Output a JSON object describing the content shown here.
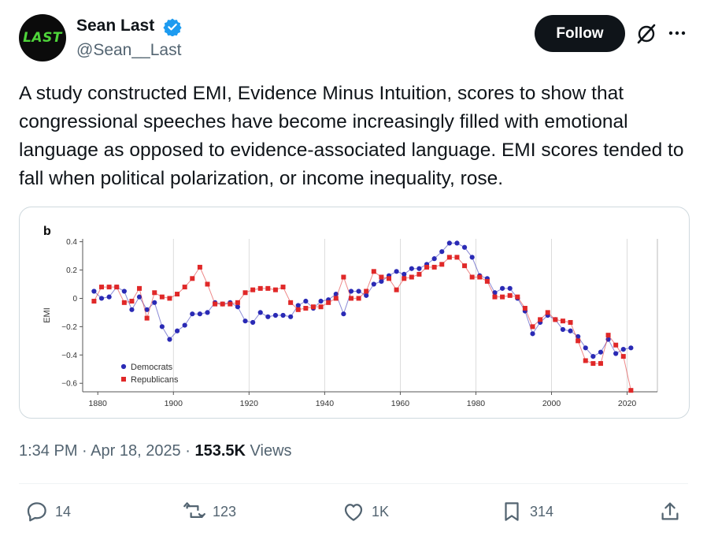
{
  "author": {
    "name": "Sean Last",
    "handle": "@Sean__Last",
    "avatar_text": "LAST",
    "verified_color": "#1d9bf0"
  },
  "follow_label": "Follow",
  "tweet_text": "A study constructed EMI, Evidence Minus Intuition, scores to show that congressional speeches have become increasingly filled with emotional language as opposed to evidence-associated language. EMI scores tended to fall when political polarization, or income inequality, rose.",
  "timestamp": "1:34 PM · Apr 18, 2025 · ",
  "views_count": "153.5K",
  "views_label": " Views",
  "actions": {
    "reply": "14",
    "retweet": "123",
    "like": "1K",
    "bookmark": "314"
  },
  "icons": [
    "verified-badge-icon",
    "grok-icon",
    "more-icon",
    "reply-icon",
    "retweet-icon",
    "like-icon",
    "bookmark-icon",
    "share-icon"
  ],
  "chart_data": {
    "type": "line",
    "panel_label": "b",
    "ylabel": "EMI",
    "xlim": [
      1876,
      2028
    ],
    "ylim": [
      -0.66,
      0.42
    ],
    "xticks": [
      1880,
      1900,
      1920,
      1940,
      1960,
      1980,
      2000,
      2020
    ],
    "yticks": [
      0.4,
      0.2,
      0,
      -0.2,
      -0.4,
      -0.6
    ],
    "ytick_labels": [
      "0.4",
      "0.2",
      "0",
      "−0.2",
      "−0.4",
      "−0.6"
    ],
    "vlines": [
      1900,
      1920,
      1940,
      1960,
      1980,
      2000,
      2020
    ],
    "legend_position": "bottom-left",
    "series": [
      {
        "name": "Democrats",
        "color": "#2a2ab5",
        "marker": "circle",
        "x": [
          1879,
          1881,
          1883,
          1885,
          1887,
          1889,
          1891,
          1893,
          1895,
          1897,
          1899,
          1901,
          1903,
          1905,
          1907,
          1909,
          1911,
          1913,
          1915,
          1917,
          1919,
          1921,
          1923,
          1925,
          1927,
          1929,
          1931,
          1933,
          1935,
          1937,
          1939,
          1941,
          1943,
          1945,
          1947,
          1949,
          1951,
          1953,
          1955,
          1957,
          1959,
          1961,
          1963,
          1965,
          1967,
          1969,
          1971,
          1973,
          1975,
          1977,
          1979,
          1981,
          1983,
          1985,
          1987,
          1989,
          1991,
          1993,
          1995,
          1997,
          1999,
          2001,
          2003,
          2005,
          2007,
          2009,
          2011,
          2013,
          2015,
          2017,
          2019,
          2021
        ],
        "y": [
          0.05,
          0.0,
          0.01,
          0.08,
          0.05,
          -0.08,
          0.01,
          -0.08,
          -0.03,
          -0.2,
          -0.29,
          -0.23,
          -0.19,
          -0.11,
          -0.11,
          -0.1,
          -0.03,
          -0.04,
          -0.03,
          -0.06,
          -0.16,
          -0.17,
          -0.1,
          -0.13,
          -0.12,
          -0.12,
          -0.13,
          -0.05,
          -0.02,
          -0.07,
          -0.02,
          -0.01,
          0.03,
          -0.11,
          0.05,
          0.05,
          0.02,
          0.1,
          0.12,
          0.16,
          0.19,
          0.17,
          0.21,
          0.21,
          0.24,
          0.28,
          0.33,
          0.39,
          0.39,
          0.36,
          0.29,
          0.16,
          0.14,
          0.04,
          0.07,
          0.07,
          0.0,
          -0.09,
          -0.25,
          -0.17,
          -0.12,
          -0.15,
          -0.22,
          -0.23,
          -0.27,
          -0.35,
          -0.41,
          -0.38,
          -0.29,
          -0.39,
          -0.36,
          -0.35
        ]
      },
      {
        "name": "Republicans",
        "color": "#e02828",
        "marker": "square",
        "x": [
          1879,
          1881,
          1883,
          1885,
          1887,
          1889,
          1891,
          1893,
          1895,
          1897,
          1899,
          1901,
          1903,
          1905,
          1907,
          1909,
          1911,
          1913,
          1915,
          1917,
          1919,
          1921,
          1923,
          1925,
          1927,
          1929,
          1931,
          1933,
          1935,
          1937,
          1939,
          1941,
          1943,
          1945,
          1947,
          1949,
          1951,
          1953,
          1955,
          1957,
          1959,
          1961,
          1963,
          1965,
          1967,
          1969,
          1971,
          1973,
          1975,
          1977,
          1979,
          1981,
          1983,
          1985,
          1987,
          1989,
          1991,
          1993,
          1995,
          1997,
          1999,
          2001,
          2003,
          2005,
          2007,
          2009,
          2011,
          2013,
          2015,
          2017,
          2019,
          2021
        ],
        "y": [
          -0.02,
          0.08,
          0.08,
          0.08,
          -0.03,
          -0.02,
          0.07,
          -0.14,
          0.04,
          0.01,
          0.0,
          0.03,
          0.08,
          0.14,
          0.22,
          0.1,
          -0.04,
          -0.04,
          -0.04,
          -0.03,
          0.04,
          0.06,
          0.07,
          0.07,
          0.06,
          0.08,
          -0.03,
          -0.08,
          -0.07,
          -0.06,
          -0.06,
          -0.03,
          0.0,
          0.15,
          0.0,
          0.0,
          0.05,
          0.19,
          0.15,
          0.14,
          0.06,
          0.14,
          0.15,
          0.17,
          0.22,
          0.22,
          0.24,
          0.29,
          0.29,
          0.23,
          0.15,
          0.15,
          0.12,
          0.01,
          0.01,
          0.02,
          0.01,
          -0.07,
          -0.2,
          -0.15,
          -0.1,
          -0.15,
          -0.16,
          -0.17,
          -0.3,
          -0.44,
          -0.46,
          -0.46,
          -0.26,
          -0.33,
          -0.41,
          -0.65
        ]
      }
    ]
  }
}
